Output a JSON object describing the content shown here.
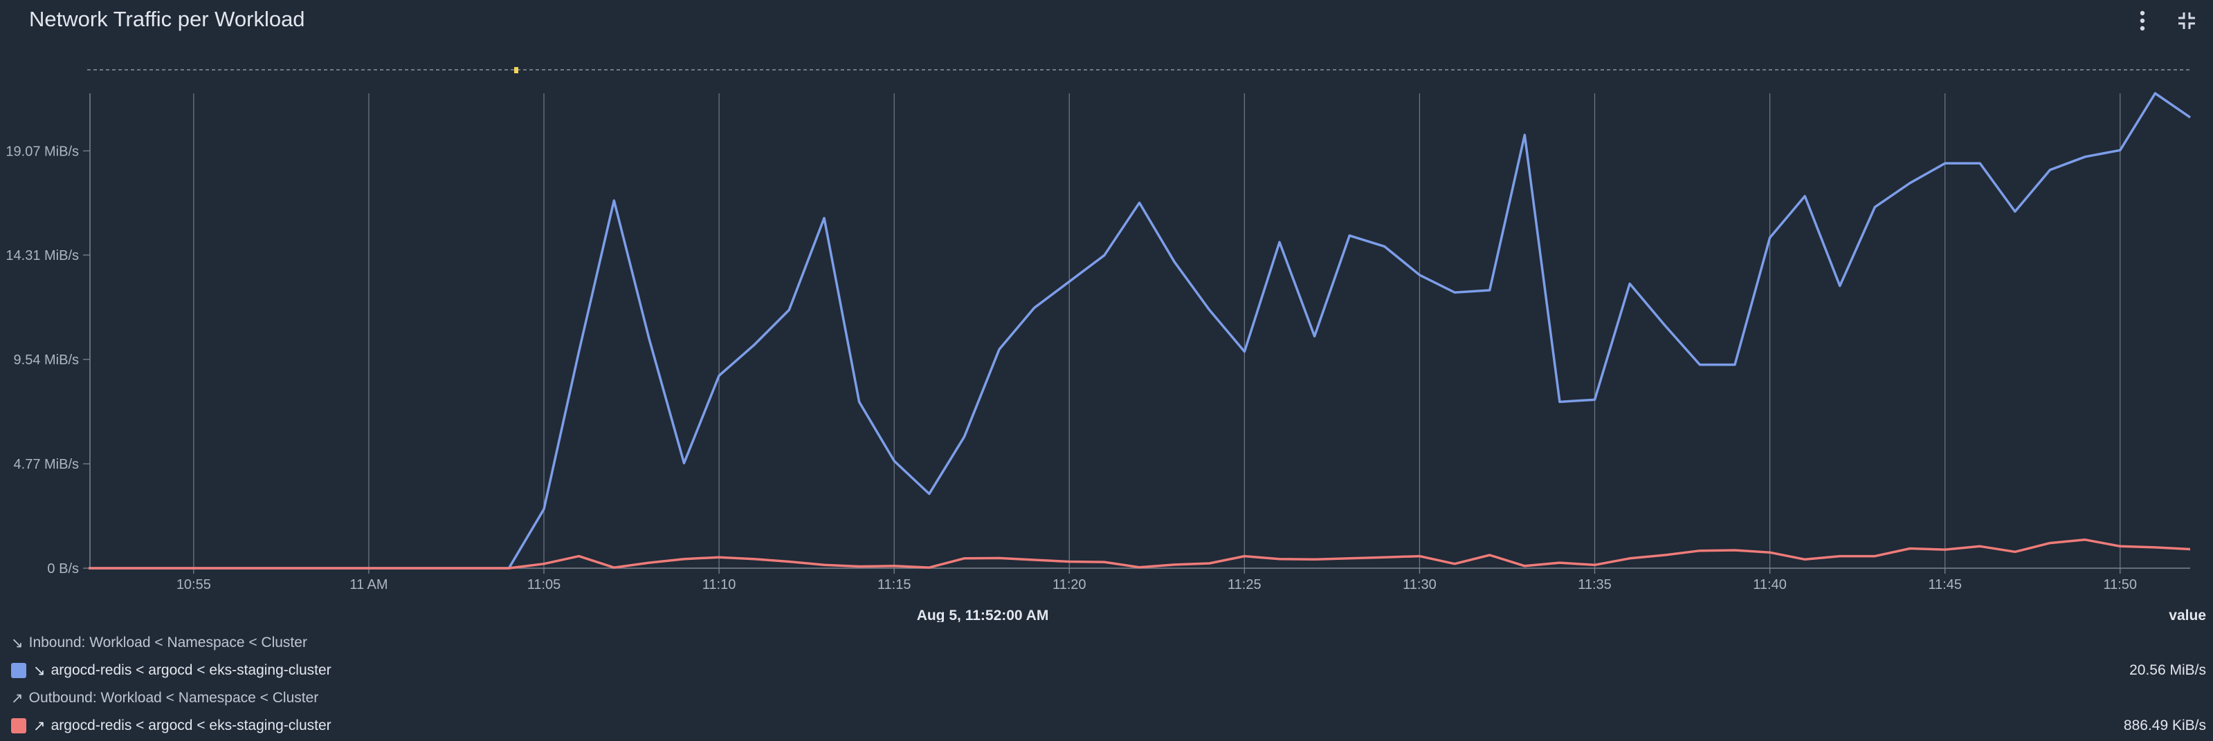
{
  "panel": {
    "title": "Network Traffic per Workload",
    "menu_icon": "kebab-menu-icon",
    "collapse_icon": "collapse-icon"
  },
  "legend": {
    "inbound_header": "Inbound: Workload < Namespace < Cluster",
    "outbound_header": "Outbound: Workload < Namespace < Cluster",
    "inbound_item": {
      "label": "argocd-redis < argocd < eks-staging-cluster",
      "value": "20.56 MiB/s",
      "color": "#7c9ee9"
    },
    "outbound_item": {
      "label": "argocd-redis < argocd < eks-staging-cluster",
      "value": "886.49 KiB/s",
      "color": "#ef7c79"
    }
  },
  "hover": {
    "timestamp": "Aug 5, 11:52:00 AM",
    "value_header": "value"
  },
  "chart_data": {
    "type": "line",
    "x_unit": "minutes",
    "xlim": [
      "10:52",
      "11:52"
    ],
    "x_ticks": [
      "10:55",
      "11 AM",
      "11:05",
      "11:10",
      "11:15",
      "11:20",
      "11:25",
      "11:30",
      "11:35",
      "11:40",
      "11:45",
      "11:50"
    ],
    "x_tick_times": [
      "10:55",
      "11:00",
      "11:05",
      "11:10",
      "11:15",
      "11:20",
      "11:25",
      "11:30",
      "11:35",
      "11:40",
      "11:45",
      "11:50"
    ],
    "y_ticks": [
      "0 B/s",
      "4.77 MiB/s",
      "9.54 MiB/s",
      "14.31 MiB/s",
      "19.07 MiB/s"
    ],
    "y_tick_values": [
      0,
      4.77,
      9.54,
      14.31,
      19.07
    ],
    "ylim": [
      0,
      21.7
    ],
    "ylabel_unit": "MiB/s",
    "x": [
      "11:04",
      "11:05",
      "11:06",
      "11:07",
      "11:08",
      "11:09",
      "11:10",
      "11:11",
      "11:12",
      "11:13",
      "11:14",
      "11:15",
      "11:16",
      "11:17",
      "11:18",
      "11:19",
      "11:20",
      "11:21",
      "11:22",
      "11:23",
      "11:24",
      "11:25",
      "11:26",
      "11:27",
      "11:28",
      "11:29",
      "11:30",
      "11:31",
      "11:32",
      "11:33",
      "11:34",
      "11:35",
      "11:36",
      "11:37",
      "11:38",
      "11:39",
      "11:40",
      "11:41",
      "11:42",
      "11:43",
      "11:44",
      "11:45",
      "11:46",
      "11:47",
      "11:48",
      "11:49",
      "11:50",
      "11:51",
      "11:52"
    ],
    "series": [
      {
        "name": "argocd-redis < argocd < eks-staging-cluster",
        "direction": "inbound",
        "color": "#7c9ee9",
        "values": [
          0,
          2.7,
          9.9,
          16.8,
          10.5,
          4.8,
          8.8,
          10.2,
          11.8,
          16.0,
          7.6,
          4.9,
          3.4,
          6.0,
          10.0,
          11.9,
          13.1,
          14.3,
          16.7,
          14.0,
          11.8,
          9.9,
          14.9,
          10.6,
          15.2,
          14.7,
          13.4,
          12.6,
          12.7,
          19.8,
          7.6,
          7.7,
          13.0,
          11.1,
          9.3,
          9.3,
          15.1,
          17.0,
          12.9,
          16.5,
          17.6,
          18.5,
          18.5,
          16.3,
          18.2,
          18.8,
          19.1,
          21.7,
          20.6
        ]
      },
      {
        "name": "argocd-redis < argocd < eks-staging-cluster",
        "direction": "outbound",
        "color": "#ef7c79",
        "values": [
          0,
          0.2,
          0.55,
          0.03,
          0.25,
          0.42,
          0.5,
          0.42,
          0.3,
          0.15,
          0.08,
          0.1,
          0.03,
          0.45,
          0.46,
          0.38,
          0.3,
          0.28,
          0.04,
          0.16,
          0.22,
          0.55,
          0.42,
          0.4,
          0.45,
          0.5,
          0.55,
          0.2,
          0.6,
          0.1,
          0.25,
          0.15,
          0.45,
          0.6,
          0.8,
          0.82,
          0.72,
          0.4,
          0.55,
          0.55,
          0.9,
          0.85,
          1.0,
          0.75,
          1.15,
          1.3,
          1.0,
          0.95,
          0.87
        ]
      }
    ]
  }
}
